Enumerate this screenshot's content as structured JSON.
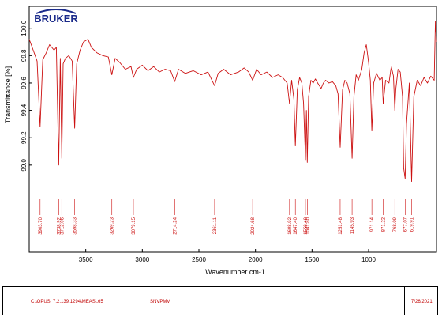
{
  "logo_text": "BRUKER",
  "footer": {
    "path": "C:\\OPUS_7.2.139.1294\\MEAS\\.65",
    "sample": "SNVPMV",
    "date": "7/26/2021"
  },
  "colors": {
    "spectrum": "#cc1111",
    "label": "#cc1111",
    "axis": "#000000"
  },
  "chart_data": {
    "type": "line",
    "title": "",
    "xlabel": "Wavenumber cm-1",
    "ylabel": "Transmittance [%]",
    "xlim": [
      4000,
      400
    ],
    "ylim": [
      98.82,
      100.16
    ],
    "xticks": [
      3500,
      3000,
      2500,
      2000,
      1500,
      1000
    ],
    "yticks": [
      99.0,
      99.2,
      99.4,
      99.6,
      99.8,
      100.0
    ],
    "ytick_labels": [
      "99.0",
      "99.2",
      "99.4",
      "99.6",
      "99.8",
      "100.0"
    ],
    "grid": false,
    "series": [
      {
        "x": [
          4000,
          3960,
          3930,
          3903.7,
          3880,
          3850,
          3820,
          3780,
          3760,
          3738.92,
          3725,
          3712.06,
          3700,
          3680,
          3650,
          3620,
          3598.33,
          3580,
          3550,
          3520,
          3480,
          3450,
          3400,
          3350,
          3300,
          3269.23,
          3240,
          3200,
          3150,
          3100,
          3079.15,
          3050,
          3000,
          2950,
          2900,
          2850,
          2800,
          2750,
          2714.24,
          2680,
          2620,
          2550,
          2480,
          2420,
          2361.11,
          2330,
          2280,
          2220,
          2150,
          2100,
          2060,
          2024.68,
          1990,
          1950,
          1900,
          1850,
          1800,
          1760,
          1720,
          1698.92,
          1680,
          1660,
          1647.4,
          1630,
          1610,
          1590,
          1575,
          1558.4,
          1550,
          1541.8,
          1530,
          1510,
          1490,
          1470,
          1450,
          1420,
          1400,
          1380,
          1350,
          1320,
          1290,
          1270,
          1251.48,
          1230,
          1210,
          1190,
          1165,
          1145.93,
          1130,
          1110,
          1090,
          1060,
          1040,
          1020,
          1000,
          985,
          971.14,
          955,
          930,
          900,
          880,
          871.22,
          850,
          820,
          800,
          780,
          768.09,
          760,
          740,
          720,
          700,
          690,
          677.07,
          665,
          640,
          619.91,
          600,
          570,
          540,
          510,
          480,
          450,
          420,
          410,
          400
        ],
        "y": [
          99.92,
          99.83,
          99.76,
          99.28,
          99.77,
          99.82,
          99.88,
          99.84,
          99.86,
          99.0,
          99.78,
          99.05,
          99.74,
          99.78,
          99.8,
          99.76,
          99.27,
          99.74,
          99.84,
          99.9,
          99.92,
          99.86,
          99.82,
          99.8,
          99.79,
          99.66,
          99.78,
          99.75,
          99.7,
          99.72,
          99.64,
          99.7,
          99.73,
          99.69,
          99.72,
          99.68,
          99.7,
          99.69,
          99.61,
          99.7,
          99.67,
          99.69,
          99.66,
          99.68,
          99.58,
          99.67,
          99.7,
          99.66,
          99.68,
          99.71,
          99.68,
          99.62,
          99.7,
          99.66,
          99.68,
          99.64,
          99.66,
          99.64,
          99.6,
          99.45,
          99.62,
          99.48,
          99.14,
          99.55,
          99.64,
          99.6,
          99.45,
          99.04,
          99.4,
          99.02,
          99.5,
          99.62,
          99.6,
          99.63,
          99.6,
          99.56,
          99.6,
          99.62,
          99.6,
          99.61,
          99.58,
          99.52,
          99.13,
          99.55,
          99.62,
          99.6,
          99.52,
          99.05,
          99.5,
          99.66,
          99.62,
          99.7,
          99.82,
          99.88,
          99.75,
          99.62,
          99.25,
          99.6,
          99.67,
          99.62,
          99.64,
          99.45,
          99.62,
          99.6,
          99.72,
          99.65,
          99.4,
          99.55,
          99.7,
          99.68,
          99.5,
          98.98,
          98.9,
          99.3,
          99.6,
          98.88,
          99.5,
          99.62,
          99.58,
          99.64,
          99.6,
          99.65,
          99.62,
          100.05,
          99.9
        ]
      }
    ],
    "peaks": [
      3903.7,
      3738.92,
      3712.06,
      3598.33,
      3269.23,
      3079.15,
      2714.24,
      2361.11,
      2024.68,
      1698.92,
      1647.4,
      1558.4,
      1541.8,
      1251.48,
      1145.93,
      971.14,
      871.22,
      768.09,
      677.07,
      619.91
    ],
    "peak_labels": [
      "3903.70",
      "3738.92",
      "3712.06",
      "3598.33",
      "3269.23",
      "3079.15",
      "2714.24",
      "2361.11",
      "2024.68",
      "1698.92",
      "1647.40",
      "1558.40",
      "1541.80",
      "1251.48",
      "1145.93",
      "971.14",
      "871.22",
      "768.09",
      "677.07",
      "619.91"
    ]
  }
}
